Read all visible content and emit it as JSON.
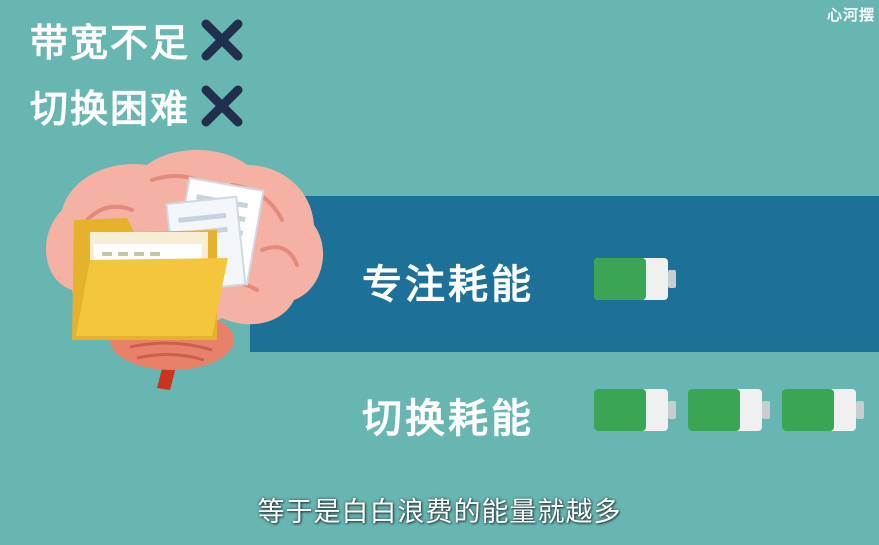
{
  "watermark": "心河摆",
  "points": [
    {
      "label": "带宽不足",
      "mark": "cross-icon"
    },
    {
      "label": "切换困难",
      "mark": "cross-icon"
    }
  ],
  "rows": [
    {
      "label": "专注耗能",
      "battery_count": 1
    },
    {
      "label": "切换耗能",
      "battery_count": 3
    }
  ],
  "subtitle": "等于是白白浪费的能量就越多",
  "colors": {
    "background": "#68b6b1",
    "band": "#1d7198",
    "cross": "#1f2f4d",
    "battery_fill": "#3aa655",
    "brain": "#f5b1a4",
    "folder": "#f4c63d"
  }
}
